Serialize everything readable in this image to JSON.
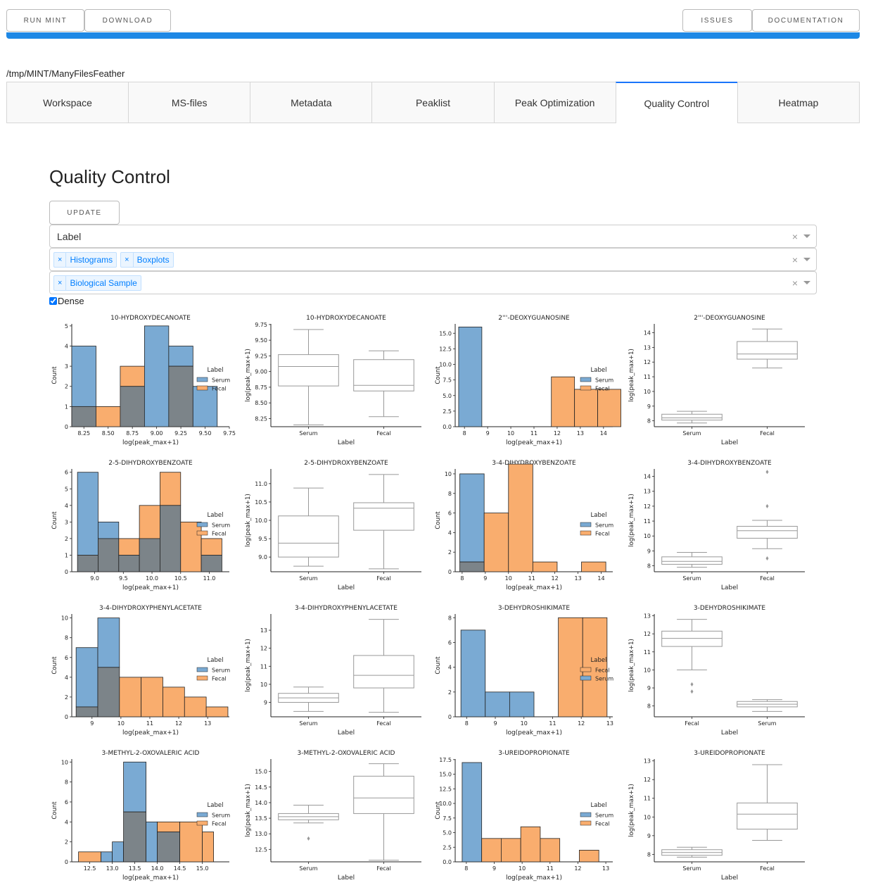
{
  "header": {
    "run_mint": "RUN MINT",
    "download": "DOWNLOAD",
    "issues": "ISSUES",
    "documentation": "DOCUMENTATION"
  },
  "path": "/tmp/MINT/ManyFilesFeather",
  "tabs": [
    "Workspace",
    "MS-files",
    "Metadata",
    "Peaklist",
    "Peak Optimization",
    "Quality Control",
    "Heatmap"
  ],
  "active_tab": "Quality Control",
  "qc": {
    "title": "Quality Control",
    "update_label": "UPDATE",
    "groupby_value": "Label",
    "plot_types": [
      "Histograms",
      "Boxplots"
    ],
    "sample_types": [
      "Biological Sample"
    ],
    "dense_label": "Dense",
    "dense_checked": true,
    "clear_symbol": "×"
  },
  "colors": {
    "serum": "#7aaad3",
    "fecal": "#f9ad6e",
    "overlap": "#7c8489",
    "accent": "#1e88e5"
  },
  "chart_data": [
    {
      "type": "histogram",
      "title": "10-HYDROXYDECANOATE",
      "xlabel": "log(peak_max+1)",
      "ylabel": "Count",
      "xlim": [
        8.125,
        9.75
      ],
      "ylim": [
        0,
        5.1
      ],
      "xticks": [
        "8.25",
        "8.50",
        "8.75",
        "9.00",
        "9.25",
        "9.50",
        "9.75"
      ],
      "xtick_values": [
        8.25,
        8.5,
        8.75,
        9.0,
        9.25,
        9.5,
        9.75
      ],
      "yticks": [
        0,
        1,
        2,
        3,
        4,
        5
      ],
      "bin_edges": [
        8.125,
        8.375,
        8.625,
        8.875,
        9.125,
        9.375,
        9.625
      ],
      "series": [
        {
          "name": "Serum",
          "values": [
            4,
            0,
            2,
            5,
            4,
            2
          ]
        },
        {
          "name": "Fecal",
          "values": [
            1,
            1,
            3,
            0,
            3,
            0
          ]
        }
      ],
      "legend_title": "Label",
      "legend": [
        "Serum",
        "Fecal"
      ],
      "legend_placement": "center-right"
    },
    {
      "type": "boxplot",
      "title": "10-HYDROXYDECANOATE",
      "xlabel": "Label",
      "ylabel": "log(peak_max+1)",
      "ylim": [
        8.12,
        9.76
      ],
      "yticks": [
        "8.25",
        "8.50",
        "8.75",
        "9.00",
        "9.25",
        "9.50",
        "9.75"
      ],
      "ytick_values": [
        8.25,
        8.5,
        8.75,
        9.0,
        9.25,
        9.5,
        9.75
      ],
      "categories": [
        "Serum",
        "Fecal"
      ],
      "boxes": [
        {
          "min": 8.15,
          "q1": 8.77,
          "median": 9.08,
          "q3": 9.27,
          "max": 9.67,
          "outliers": []
        },
        {
          "min": 8.28,
          "q1": 8.69,
          "median": 8.78,
          "q3": 9.19,
          "max": 9.33,
          "outliers": []
        }
      ]
    },
    {
      "type": "histogram",
      "title": "2'''-DEOXYGUANOSINE",
      "xlabel": "log(peak_max+1)",
      "ylabel": "Count",
      "xlim": [
        7.6,
        14.4
      ],
      "ylim": [
        0,
        16.5
      ],
      "xticks": [
        "8",
        "9",
        "10",
        "11",
        "12",
        "13",
        "14"
      ],
      "xtick_values": [
        8,
        9,
        10,
        11,
        12,
        13,
        14
      ],
      "yticks": [
        "0.0",
        "2.5",
        "5.0",
        "7.5",
        "10.0",
        "12.5",
        "15.0"
      ],
      "ytick_values": [
        0,
        2.5,
        5,
        7.5,
        10,
        12.5,
        15
      ],
      "bin_edges": [
        7.75,
        8.75,
        9.75,
        10.75,
        11.75,
        12.75,
        13.75,
        14.75
      ],
      "series": [
        {
          "name": "Serum",
          "values": [
            16,
            0,
            0,
            0,
            0,
            0,
            0
          ]
        },
        {
          "name": "Fecal",
          "values": [
            0,
            0,
            0,
            0,
            8,
            6,
            6
          ]
        }
      ],
      "legend_title": "Label",
      "legend": [
        "Serum",
        "Fecal"
      ],
      "legend_placement": "center-right"
    },
    {
      "type": "boxplot",
      "title": "2'''-DEOXYGUANOSINE",
      "xlabel": "Label",
      "ylabel": "log(peak_max+1)",
      "ylim": [
        7.6,
        14.6
      ],
      "yticks": [
        "8",
        "9",
        "10",
        "11",
        "12",
        "13",
        "14"
      ],
      "ytick_values": [
        8,
        9,
        10,
        11,
        12,
        13,
        14
      ],
      "categories": [
        "Serum",
        "Fecal"
      ],
      "boxes": [
        {
          "min": 7.85,
          "q1": 8.05,
          "median": 8.2,
          "q3": 8.45,
          "max": 8.65,
          "outliers": []
        },
        {
          "min": 11.6,
          "q1": 12.2,
          "median": 12.55,
          "q3": 13.4,
          "max": 14.25,
          "outliers": []
        }
      ]
    },
    {
      "type": "histogram",
      "title": "2-5-DIHYDROXYBENZOATE",
      "xlabel": "log(peak_max+1)",
      "ylabel": "Count",
      "xlim": [
        8.6,
        11.35
      ],
      "ylim": [
        0,
        6.2
      ],
      "xticks": [
        "9.0",
        "9.5",
        "10.0",
        "10.5",
        "11.0"
      ],
      "xtick_values": [
        9.0,
        9.5,
        10.0,
        10.5,
        11.0
      ],
      "yticks": [
        0,
        1,
        2,
        3,
        4,
        5,
        6
      ],
      "bin_edges": [
        8.7,
        9.06,
        9.42,
        9.78,
        10.14,
        10.5,
        10.86,
        11.22
      ],
      "series": [
        {
          "name": "Serum",
          "values": [
            6,
            3,
            1,
            2,
            4,
            0,
            1
          ]
        },
        {
          "name": "Fecal",
          "values": [
            1,
            2,
            2,
            4,
            6,
            3,
            2
          ]
        }
      ],
      "legend_title": "Label",
      "legend": [
        "Serum",
        "Fecal"
      ],
      "legend_placement": "center-right"
    },
    {
      "type": "boxplot",
      "title": "2-5-DIHYDROXYBENZOATE",
      "xlabel": "Label",
      "ylabel": "log(peak_max+1)",
      "ylim": [
        8.6,
        11.4
      ],
      "yticks": [
        "9.0",
        "9.5",
        "10.0",
        "10.5",
        "11.0"
      ],
      "ytick_values": [
        9.0,
        9.5,
        10.0,
        10.5,
        11.0
      ],
      "categories": [
        "Serum",
        "Fecal"
      ],
      "boxes": [
        {
          "min": 8.75,
          "q1": 9.0,
          "median": 9.38,
          "q3": 10.12,
          "max": 10.88,
          "outliers": []
        },
        {
          "min": 8.68,
          "q1": 9.73,
          "median": 10.33,
          "q3": 10.48,
          "max": 11.25,
          "outliers": []
        }
      ]
    },
    {
      "type": "histogram",
      "title": "3-4-DIHYDROXYBENZOATE",
      "xlabel": "log(peak_max+1)",
      "ylabel": "Count",
      "xlim": [
        7.7,
        14.5
      ],
      "ylim": [
        0,
        10.5
      ],
      "xticks": [
        "8",
        "9",
        "10",
        "11",
        "12",
        "13",
        "14"
      ],
      "xtick_values": [
        8,
        9,
        10,
        11,
        12,
        13,
        14
      ],
      "yticks": [
        0,
        2,
        4,
        6,
        8,
        10
      ],
      "bin_edges": [
        7.9,
        8.95,
        10.0,
        11.05,
        12.1,
        13.15,
        14.2
      ],
      "series": [
        {
          "name": "Serum",
          "values": [
            10,
            0,
            0,
            0,
            0,
            0
          ]
        },
        {
          "name": "Fecal",
          "values": [
            1,
            6,
            11,
            1,
            0,
            1
          ]
        }
      ],
      "legend_title": "Label",
      "legend": [
        "Serum",
        "Fecal"
      ],
      "legend_placement": "center-right"
    },
    {
      "type": "boxplot",
      "title": "3-4-DIHYDROXYBENZOATE",
      "xlabel": "Label",
      "ylabel": "log(peak_max+1)",
      "ylim": [
        7.6,
        14.5
      ],
      "yticks": [
        "8",
        "9",
        "10",
        "11",
        "12",
        "13",
        "14"
      ],
      "ytick_values": [
        8,
        9,
        10,
        11,
        12,
        13,
        14
      ],
      "categories": [
        "Serum",
        "Fecal"
      ],
      "boxes": [
        {
          "min": 7.9,
          "q1": 8.1,
          "median": 8.3,
          "q3": 8.6,
          "max": 8.9,
          "outliers": []
        },
        {
          "min": 9.15,
          "q1": 9.85,
          "median": 10.35,
          "q3": 10.65,
          "max": 11.05,
          "outliers": [
            8.5,
            12.0,
            14.3
          ]
        }
      ]
    },
    {
      "type": "histogram",
      "title": "3-4-DIHYDROXYPHENYLACETATE",
      "xlabel": "log(peak_max+1)",
      "ylabel": "Count",
      "xlim": [
        8.3,
        13.75
      ],
      "ylim": [
        0,
        10.4
      ],
      "xticks": [
        "9",
        "10",
        "11",
        "12",
        "13"
      ],
      "xtick_values": [
        9,
        10,
        11,
        12,
        13
      ],
      "yticks": [
        0,
        2,
        4,
        6,
        8,
        10
      ],
      "bin_edges": [
        8.45,
        9.2,
        9.95,
        10.7,
        11.45,
        12.2,
        12.95,
        13.7
      ],
      "series": [
        {
          "name": "Serum",
          "values": [
            7,
            10,
            0,
            0,
            0,
            0,
            0
          ]
        },
        {
          "name": "Fecal",
          "values": [
            1,
            5,
            4,
            4,
            3,
            2,
            1
          ]
        }
      ],
      "legend_title": "Label",
      "legend": [
        "Serum",
        "Fecal"
      ],
      "legend_placement": "center-right"
    },
    {
      "type": "boxplot",
      "title": "3-4-DIHYDROXYPHENYLACETATE",
      "xlabel": "Label",
      "ylabel": "log(peak_max+1)",
      "ylim": [
        8.2,
        13.9
      ],
      "yticks": [
        "9",
        "10",
        "11",
        "12",
        "13"
      ],
      "ytick_values": [
        9,
        10,
        11,
        12,
        13
      ],
      "categories": [
        "Serum",
        "Fecal"
      ],
      "boxes": [
        {
          "min": 8.5,
          "q1": 9.0,
          "median": 9.25,
          "q3": 9.5,
          "max": 9.85,
          "outliers": []
        },
        {
          "min": 8.45,
          "q1": 9.8,
          "median": 10.5,
          "q3": 11.6,
          "max": 13.6,
          "outliers": []
        }
      ]
    },
    {
      "type": "histogram",
      "title": "3-DEHYDROSHIKIMATE",
      "xlabel": "log(peak_max+1)",
      "ylabel": "Count",
      "xlim": [
        7.6,
        13.1
      ],
      "ylim": [
        0,
        8.3
      ],
      "xticks": [
        "8",
        "9",
        "10",
        "11",
        "12",
        "13"
      ],
      "xtick_values": [
        8,
        9,
        10,
        11,
        12,
        13
      ],
      "yticks": [
        0,
        2,
        4,
        6,
        8
      ],
      "bin_edges": [
        7.8,
        8.65,
        9.5,
        10.35,
        11.2,
        12.05,
        12.9
      ],
      "series": [
        {
          "name": "Fecal",
          "values": [
            0,
            0,
            0,
            0,
            8,
            8
          ]
        },
        {
          "name": "Serum",
          "values": [
            7,
            2,
            2,
            0,
            0,
            0
          ]
        }
      ],
      "legend_title": "Label",
      "legend": [
        "Fecal",
        "Serum"
      ],
      "legend_placement": "center-right"
    },
    {
      "type": "boxplot",
      "title": "3-DEHYDROSHIKIMATE",
      "xlabel": "Label",
      "ylabel": "log(peak_max+1)",
      "ylim": [
        7.4,
        13.1
      ],
      "yticks": [
        "8",
        "9",
        "10",
        "11",
        "12",
        "13"
      ],
      "ytick_values": [
        8,
        9,
        10,
        11,
        12,
        13
      ],
      "categories": [
        "Fecal",
        "Serum"
      ],
      "boxes": [
        {
          "min": 10.0,
          "q1": 11.3,
          "median": 11.75,
          "q3": 12.15,
          "max": 12.8,
          "outliers": [
            8.8,
            9.2
          ]
        },
        {
          "min": 7.7,
          "q1": 7.95,
          "median": 8.1,
          "q3": 8.25,
          "max": 8.35,
          "outliers": []
        }
      ]
    },
    {
      "type": "histogram",
      "title": "3-METHYL-2-OXOVALERIC ACID",
      "xlabel": "log(peak_max+1)",
      "ylabel": "Count",
      "xlim": [
        12.1,
        15.6
      ],
      "ylim": [
        0,
        10.3
      ],
      "xticks": [
        "12.5",
        "13.0",
        "13.5",
        "14.0",
        "14.5",
        "15.0"
      ],
      "xtick_values": [
        12.5,
        13.0,
        13.5,
        14.0,
        14.5,
        15.0
      ],
      "yticks": [
        0,
        2,
        4,
        6,
        8,
        10
      ],
      "bin_edges": [
        12.25,
        12.75,
        13.0,
        13.25,
        13.75,
        14.0,
        14.5,
        15.0,
        15.25
      ],
      "series": [
        {
          "name": "Serum",
          "values": [
            0,
            1,
            2,
            10,
            4,
            3,
            0,
            0
          ]
        },
        {
          "name": "Fecal",
          "values": [
            1,
            0,
            0,
            5,
            0,
            4,
            4,
            3
          ]
        }
      ],
      "legend_title": "Label",
      "legend": [
        "Serum",
        "Fecal"
      ],
      "legend_placement": "center-right"
    },
    {
      "type": "boxplot",
      "title": "3-METHYL-2-OXOVALERIC ACID",
      "xlabel": "Label",
      "ylabel": "log(peak_max+1)",
      "ylim": [
        12.1,
        15.4
      ],
      "yticks": [
        "12.5",
        "13.0",
        "13.5",
        "14.0",
        "14.5",
        "15.0"
      ],
      "ytick_values": [
        12.5,
        13.0,
        13.5,
        14.0,
        14.5,
        15.0
      ],
      "categories": [
        "Serum",
        "Fecal"
      ],
      "boxes": [
        {
          "min": 13.35,
          "q1": 13.45,
          "median": 13.55,
          "q3": 13.65,
          "max": 13.92,
          "outliers": [
            12.85
          ]
        },
        {
          "min": 12.15,
          "q1": 13.65,
          "median": 14.15,
          "q3": 14.85,
          "max": 15.25,
          "outliers": []
        }
      ]
    },
    {
      "type": "histogram",
      "title": "3-UREIDOPROPIONATE",
      "xlabel": "log(peak_max+1)",
      "ylabel": "Count",
      "xlim": [
        7.6,
        13.25
      ],
      "ylim": [
        0,
        17.6
      ],
      "xticks": [
        "8",
        "9",
        "10",
        "11",
        "12",
        "13"
      ],
      "xtick_values": [
        8,
        9,
        10,
        11,
        12,
        13
      ],
      "yticks": [
        "0.0",
        "2.5",
        "5.0",
        "7.5",
        "10.0",
        "12.5",
        "15.0",
        "17.5"
      ],
      "ytick_values": [
        0,
        2.5,
        5,
        7.5,
        10,
        12.5,
        15,
        17.5
      ],
      "bin_edges": [
        7.85,
        8.55,
        9.25,
        9.95,
        10.65,
        11.35,
        12.05,
        12.75
      ],
      "series": [
        {
          "name": "Serum",
          "values": [
            17,
            0,
            0,
            0,
            0,
            0,
            0
          ]
        },
        {
          "name": "Fecal",
          "values": [
            0,
            4,
            4,
            6,
            4,
            0,
            2
          ]
        }
      ],
      "legend_title": "Label",
      "legend": [
        "Serum",
        "Fecal"
      ],
      "legend_placement": "center-right"
    },
    {
      "type": "boxplot",
      "title": "3-UREIDOPROPIONATE",
      "xlabel": "Label",
      "ylabel": "log(peak_max+1)",
      "ylim": [
        7.6,
        13.1
      ],
      "yticks": [
        "8",
        "9",
        "10",
        "11",
        "12",
        "13"
      ],
      "ytick_values": [
        8,
        9,
        10,
        11,
        12,
        13
      ],
      "categories": [
        "Serum",
        "Fecal"
      ],
      "boxes": [
        {
          "min": 7.85,
          "q1": 7.95,
          "median": 8.1,
          "q3": 8.25,
          "max": 8.38,
          "outliers": []
        },
        {
          "min": 8.75,
          "q1": 9.35,
          "median": 10.15,
          "q3": 10.75,
          "max": 12.8,
          "outliers": []
        }
      ]
    }
  ]
}
